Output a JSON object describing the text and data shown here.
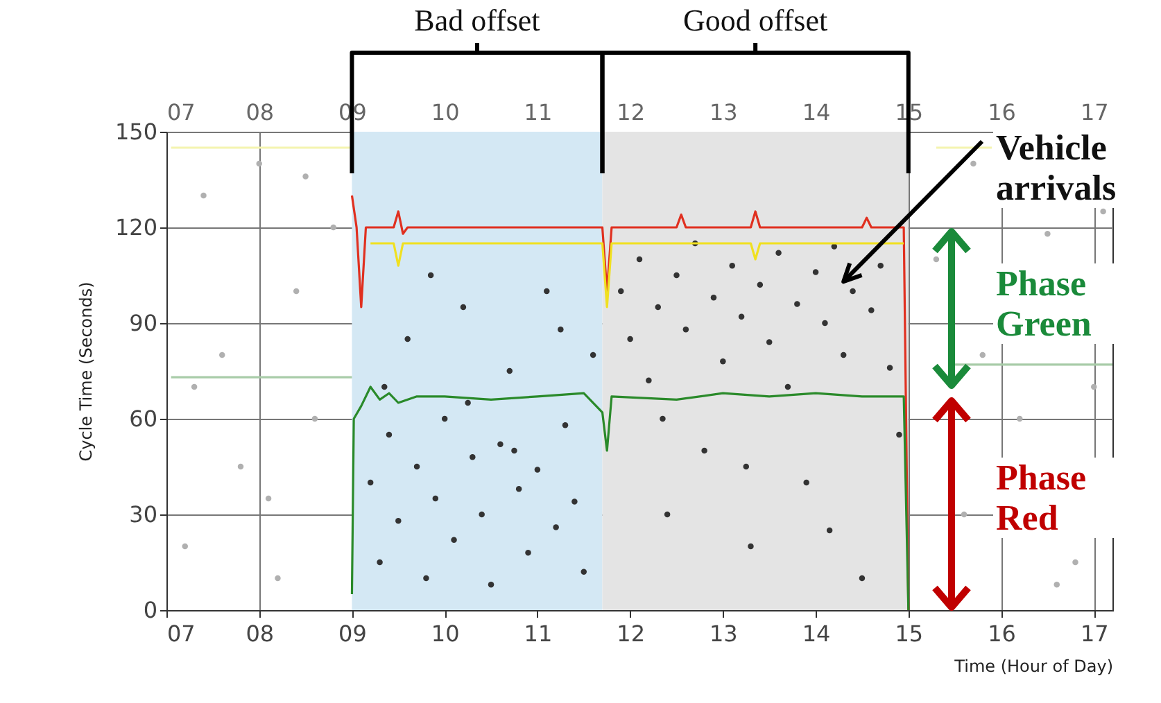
{
  "chart_data": {
    "type": "scatter",
    "xlabel": "Time (Hour of Day)",
    "ylabel": "Cycle Time (Seconds)",
    "xlim": [
      7,
      17.2
    ],
    "ylim": [
      0,
      150
    ],
    "xticks": [
      {
        "value": 7,
        "label": "07"
      },
      {
        "value": 8,
        "label": "08"
      },
      {
        "value": 9,
        "label": "09"
      },
      10,
      11,
      12,
      13,
      14,
      15,
      16,
      17
    ],
    "x2lim": [
      7,
      17.2
    ],
    "x2ticks": [
      {
        "value": 7,
        "label": "07"
      },
      {
        "value": 8,
        "label": "08"
      },
      {
        "value": 9,
        "label": "09"
      },
      10,
      11,
      12,
      13,
      14,
      15,
      16,
      17
    ],
    "yticks": [
      0,
      30,
      60,
      90,
      120,
      150
    ],
    "grid": true,
    "bands": [
      {
        "axis": "x",
        "from": 9,
        "to": 11.7,
        "color": "#d4e8f4"
      },
      {
        "axis": "x",
        "from": 11.7,
        "to": 15,
        "color": "#e4e4e4"
      }
    ],
    "annotations": [
      "Bad offset",
      "Good offset",
      "Vehicle arrivals",
      "Phase Green",
      "Phase Red"
    ],
    "series": [
      {
        "marker": "circle",
        "color": "#b0b0b0",
        "x": [
          7.2,
          7.4,
          7.6,
          7.8,
          8.0,
          8.2,
          8.4,
          8.6,
          8.8,
          7.3,
          8.1,
          8.5,
          15.3,
          15.6,
          15.7,
          16.2,
          16.5,
          16.8,
          17.1,
          15.8,
          16.6,
          17.0
        ],
        "values": [
          20,
          130,
          80,
          45,
          140,
          10,
          100,
          60,
          120,
          70,
          35,
          136,
          110,
          30,
          140,
          60,
          118,
          15,
          125,
          80,
          8,
          70
        ]
      },
      {
        "marker": "circle",
        "color": "#333333",
        "x": [
          9.2,
          9.3,
          9.4,
          9.5,
          9.6,
          9.7,
          9.8,
          9.9,
          10.0,
          10.1,
          10.2,
          10.3,
          10.4,
          10.5,
          10.6,
          10.7,
          10.8,
          10.9,
          11.0,
          11.1,
          11.2,
          11.3,
          11.4,
          11.5,
          11.6,
          9.35,
          10.25,
          11.25,
          9.85,
          10.75,
          11.9,
          12.0,
          12.1,
          12.2,
          12.3,
          12.4,
          12.5,
          12.6,
          12.7,
          12.8,
          12.9,
          13.0,
          13.1,
          13.2,
          13.3,
          13.4,
          13.5,
          13.6,
          13.7,
          13.8,
          13.9,
          14.0,
          14.1,
          14.2,
          14.3,
          14.4,
          14.5,
          14.6,
          14.7,
          14.8,
          14.9,
          12.35,
          13.25,
          14.15
        ],
        "values": [
          40,
          15,
          55,
          28,
          85,
          45,
          10,
          35,
          60,
          22,
          95,
          48,
          30,
          8,
          52,
          75,
          38,
          18,
          44,
          100,
          26,
          58,
          34,
          12,
          80,
          70,
          65,
          88,
          105,
          50,
          100,
          85,
          110,
          72,
          95,
          30,
          105,
          88,
          115,
          50,
          98,
          78,
          108,
          92,
          20,
          102,
          84,
          112,
          70,
          96,
          40,
          106,
          90,
          114,
          80,
          100,
          10,
          94,
          108,
          76,
          55,
          60,
          45,
          25
        ]
      },
      {
        "type": "line",
        "color": "#f4f4b0",
        "x": [
          7.05,
          9
        ],
        "values": [
          145,
          145
        ]
      },
      {
        "type": "line",
        "color": "#f4f4b0",
        "x": [
          15.3,
          15.9
        ],
        "values": [
          145,
          145
        ]
      },
      {
        "type": "line",
        "color": "#a8cca8",
        "x": [
          7.05,
          9
        ],
        "values": [
          73,
          73
        ]
      },
      {
        "type": "line",
        "color": "#a8cca8",
        "x": [
          15.5,
          17.2
        ],
        "values": [
          77,
          77
        ]
      },
      {
        "type": "line",
        "color": "#e03020",
        "x": [
          9,
          9.05,
          9.1,
          9.15,
          9.45,
          9.5,
          9.55,
          9.6,
          11.7,
          11.75,
          11.8,
          12.5,
          12.55,
          12.6,
          13.3,
          13.35,
          13.4,
          14.5,
          14.55,
          14.6,
          14.95,
          15
        ],
        "values": [
          130,
          120,
          95,
          120,
          120,
          125,
          118,
          120,
          120,
          100,
          120,
          120,
          124,
          120,
          120,
          125,
          120,
          120,
          123,
          120,
          120,
          0
        ]
      },
      {
        "type": "line",
        "color": "#f0e020",
        "x": [
          9.2,
          9.45,
          9.5,
          9.55,
          11.7,
          11.75,
          11.8,
          13.3,
          13.35,
          13.4,
          14.95
        ],
        "values": [
          115,
          115,
          108,
          115,
          115,
          95,
          115,
          115,
          110,
          115,
          115
        ]
      },
      {
        "type": "line",
        "color": "#2a8a2a",
        "x": [
          9,
          9.02,
          9.1,
          9.2,
          9.3,
          9.4,
          9.5,
          9.7,
          10,
          10.5,
          11,
          11.5,
          11.7,
          11.75,
          11.8,
          12.5,
          13,
          13.5,
          14,
          14.5,
          14.95,
          15
        ],
        "values": [
          5,
          60,
          64,
          70,
          66,
          68,
          65,
          67,
          67,
          66,
          67,
          68,
          62,
          50,
          67,
          66,
          68,
          67,
          68,
          67,
          67,
          0
        ]
      }
    ]
  }
}
